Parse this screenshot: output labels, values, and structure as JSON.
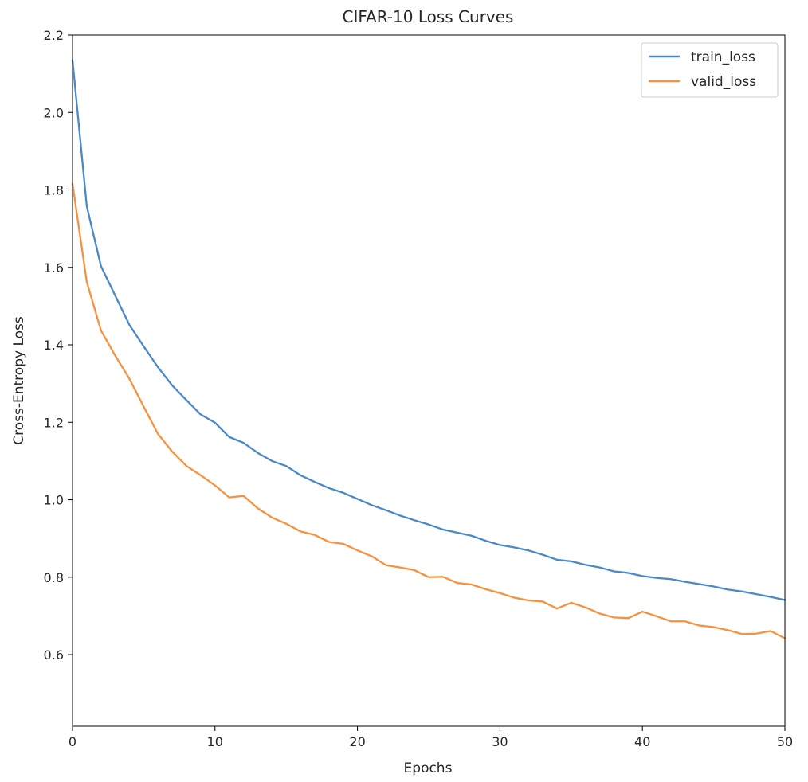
{
  "chart_data": {
    "type": "line",
    "title": "CIFAR-10 Loss Curves",
    "xlabel": "Epochs",
    "ylabel": "Cross-Entropy Loss",
    "xlim": [
      0,
      50
    ],
    "ylim": [
      0.415,
      2.2
    ],
    "xticks": [
      0,
      10,
      20,
      30,
      40,
      50
    ],
    "yticks": [
      0.6,
      0.8,
      1.0,
      1.2,
      1.4,
      1.6,
      1.8,
      2.0,
      2.2
    ],
    "xtick_labels": [
      "0",
      "10",
      "20",
      "30",
      "40",
      "50"
    ],
    "ytick_labels": [
      "0.6",
      "0.8",
      "1.0",
      "1.2",
      "1.4",
      "1.6",
      "1.8",
      "2.0",
      "2.2"
    ],
    "grid": false,
    "legend_position": "top-right",
    "x": [
      0,
      1,
      2,
      3,
      4,
      5,
      6,
      7,
      8,
      9,
      10,
      11,
      12,
      13,
      14,
      15,
      16,
      17,
      18,
      19,
      20,
      21,
      22,
      23,
      24,
      25,
      26,
      27,
      28,
      29,
      30,
      31,
      32,
      33,
      34,
      35,
      36,
      37,
      38,
      39,
      40,
      41,
      42,
      43,
      44,
      45,
      46,
      47,
      48,
      49,
      50
    ],
    "series": [
      {
        "name": "train_loss",
        "color": "#4a89c9",
        "values": [
          2.135,
          1.758,
          1.603,
          1.527,
          1.451,
          1.396,
          1.342,
          1.295,
          1.257,
          1.22,
          1.199,
          1.162,
          1.147,
          1.121,
          1.1,
          1.087,
          1.063,
          1.046,
          1.03,
          1.018,
          1.002,
          0.986,
          0.973,
          0.959,
          0.947,
          0.936,
          0.923,
          0.915,
          0.907,
          0.894,
          0.883,
          0.877,
          0.869,
          0.858,
          0.845,
          0.841,
          0.832,
          0.825,
          0.815,
          0.811,
          0.803,
          0.798,
          0.795,
          0.788,
          0.782,
          0.776,
          0.768,
          0.763,
          0.756,
          0.749,
          0.741
        ]
      },
      {
        "name": "valid_loss",
        "color": "#f5923e",
        "values": [
          1.816,
          1.563,
          1.437,
          1.372,
          1.312,
          1.24,
          1.17,
          1.124,
          1.087,
          1.063,
          1.037,
          1.006,
          1.01,
          0.978,
          0.954,
          0.938,
          0.918,
          0.909,
          0.891,
          0.886,
          0.869,
          0.854,
          0.831,
          0.825,
          0.818,
          0.8,
          0.801,
          0.785,
          0.781,
          0.769,
          0.759,
          0.747,
          0.74,
          0.737,
          0.719,
          0.734,
          0.722,
          0.706,
          0.696,
          0.694,
          0.711,
          0.699,
          0.686,
          0.686,
          0.675,
          0.671,
          0.663,
          0.653,
          0.654,
          0.661,
          0.642
        ]
      }
    ]
  }
}
